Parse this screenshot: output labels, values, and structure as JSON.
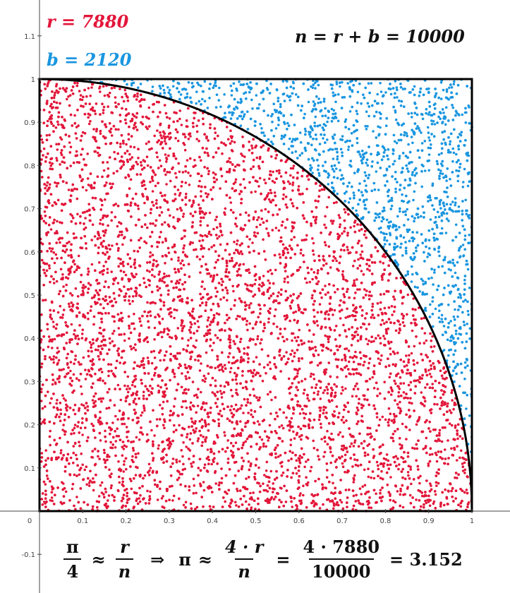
{
  "chart_data": {
    "type": "scatter",
    "xlim": [
      -0.08,
      1.03
    ],
    "ylim": [
      -0.13,
      1.15
    ],
    "x_ticks": [
      "0",
      "0.1",
      "0.2",
      "0.3",
      "0.4",
      "0.5",
      "0.6",
      "0.7",
      "0.8",
      "0.9",
      "1"
    ],
    "x_tick_values": [
      0,
      0.1,
      0.2,
      0.3,
      0.4,
      0.5,
      0.6,
      0.7,
      0.8,
      0.9,
      1
    ],
    "y_ticks": [
      "-0.1",
      "0.1",
      "0.2",
      "0.3",
      "0.4",
      "0.5",
      "0.6",
      "0.7",
      "0.8",
      "0.9",
      "1",
      "1.1"
    ],
    "y_tick_values": [
      -0.1,
      0.1,
      0.2,
      0.3,
      0.4,
      0.5,
      0.6,
      0.7,
      0.8,
      0.9,
      1,
      1.1
    ],
    "grid": false,
    "square": {
      "x": [
        0,
        1
      ],
      "y": [
        0,
        1
      ]
    },
    "arc": {
      "center": [
        0,
        0
      ],
      "radius": 1
    },
    "series": [
      {
        "name": "r",
        "count": 7880,
        "color": "#e3163a",
        "region": "inside quarter circle"
      },
      {
        "name": "b",
        "count": 2120,
        "color": "#1a96e0",
        "region": "outside quarter circle"
      }
    ],
    "annotations": {
      "r": "r = 7880",
      "b": "b = 2120",
      "n": "n = r + b = 10000"
    },
    "formula": {
      "pi": "π",
      "four": "4",
      "r": "r",
      "n": "n",
      "approx": "≈",
      "implies": "⇒",
      "numer": "4 · r",
      "numer2": "4 · 7880",
      "denom2": "10000",
      "eq": "=",
      "result": "= 3.152"
    }
  }
}
